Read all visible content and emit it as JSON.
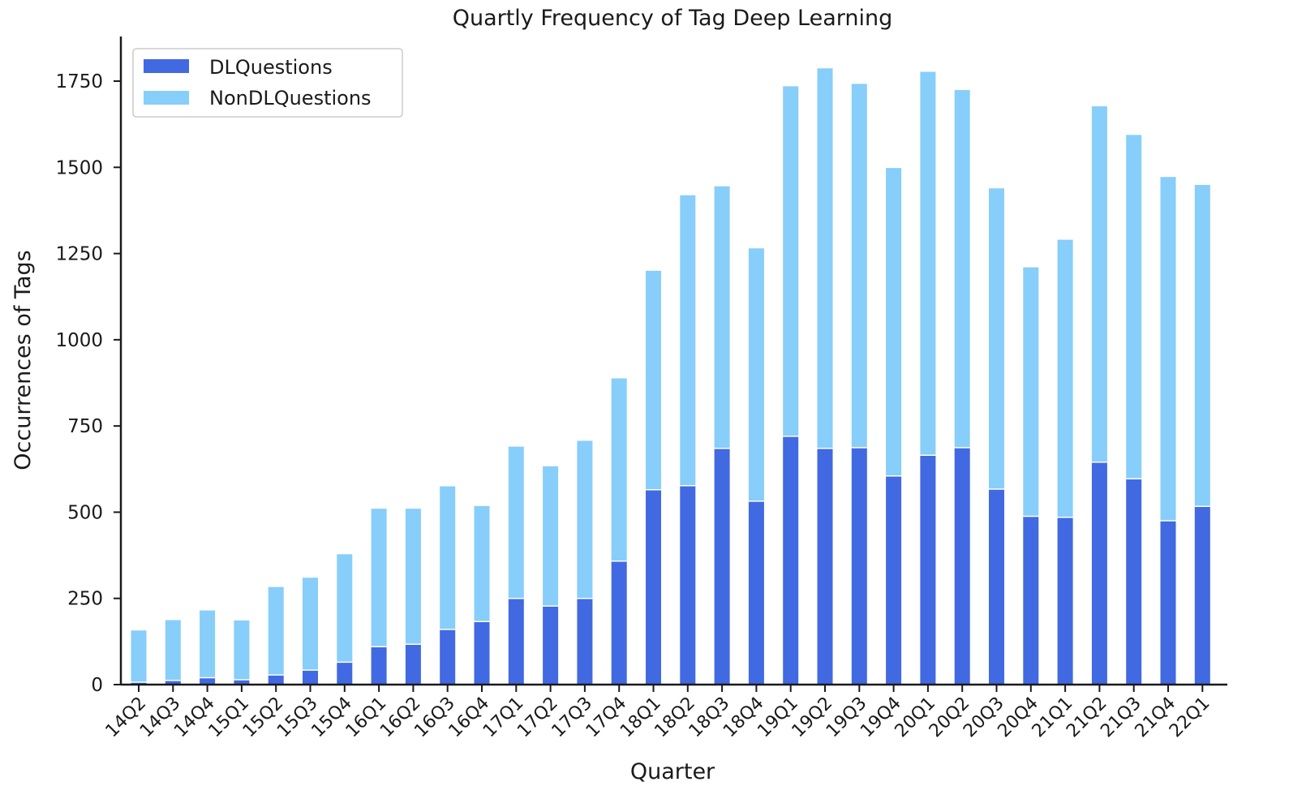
{
  "chart_data": {
    "type": "bar",
    "stacked": true,
    "title": "Quartly Frequency of Tag Deep Learning",
    "xlabel": "Quarter",
    "ylabel": "Occurrences of Tags",
    "ylim": [
      0,
      1875
    ],
    "yticks": [
      0,
      250,
      500,
      750,
      1000,
      1250,
      1500,
      1750
    ],
    "legend": "top-left",
    "grid": false,
    "categories": [
      "14Q2",
      "14Q3",
      "14Q4",
      "15Q1",
      "15Q2",
      "15Q3",
      "15Q4",
      "16Q1",
      "16Q2",
      "16Q3",
      "16Q4",
      "17Q1",
      "17Q2",
      "17Q3",
      "17Q4",
      "18Q1",
      "18Q2",
      "18Q3",
      "18Q4",
      "19Q1",
      "19Q2",
      "19Q3",
      "19Q4",
      "20Q1",
      "20Q2",
      "20Q3",
      "20Q4",
      "21Q1",
      "21Q2",
      "21Q3",
      "21Q4",
      "22Q1"
    ],
    "series": [
      {
        "name": "DLQuestions",
        "color": "#4169e1",
        "values": [
          7,
          12,
          20,
          14,
          28,
          42,
          65,
          110,
          117,
          160,
          183,
          250,
          228,
          250,
          358,
          565,
          577,
          685,
          532,
          720,
          685,
          687,
          605,
          665,
          687,
          567,
          488,
          485,
          645,
          597,
          475,
          517
        ]
      },
      {
        "name": "NonDLQuestions",
        "color": "#87cefa",
        "values": [
          150,
          175,
          195,
          172,
          255,
          268,
          313,
          400,
          393,
          415,
          335,
          440,
          405,
          457,
          530,
          635,
          842,
          760,
          733,
          1015,
          1102,
          1055,
          893,
          1112,
          1037,
          872,
          722,
          805,
          1032,
          997,
          997,
          932
        ]
      }
    ]
  }
}
